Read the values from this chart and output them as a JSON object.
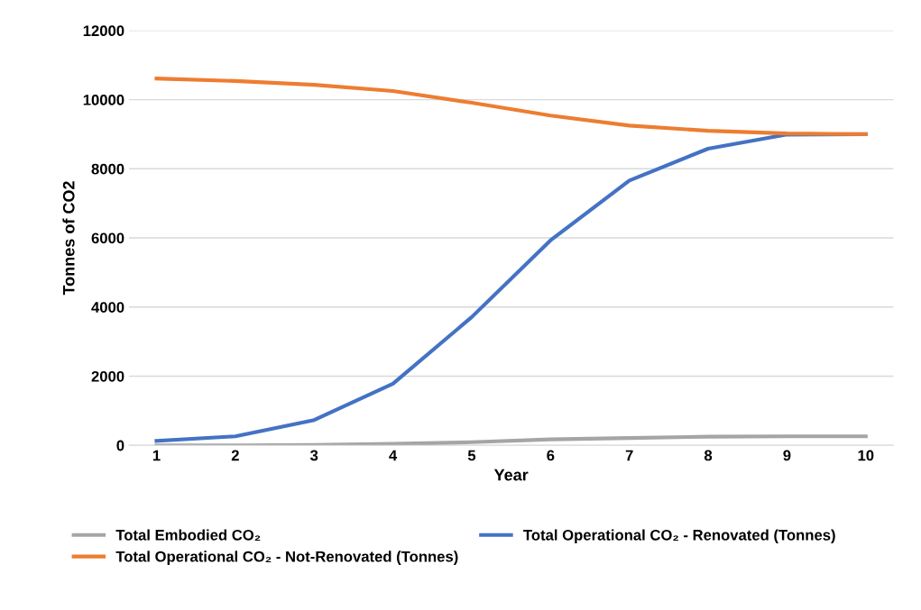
{
  "chart_data": {
    "type": "line",
    "xlabel": "Year",
    "ylabel": "Tonnes of CO2",
    "categories": [
      "1",
      "2",
      "3",
      "4",
      "5",
      "6",
      "7",
      "8",
      "9",
      "10"
    ],
    "series": [
      {
        "name": "Total Embodied CO₂",
        "color": "#a5a5a5",
        "values": [
          0,
          0,
          10,
          40,
          90,
          170,
          210,
          250,
          260,
          260
        ]
      },
      {
        "name": "Total Operational CO₂ - Renovated (Tonnes)",
        "color": "#4472c4",
        "values": [
          130,
          260,
          730,
          1780,
          3710,
          5930,
          7660,
          8580,
          8990,
          9000
        ]
      },
      {
        "name": "Total Operational CO₂ - Not-Renovated (Tonnes)",
        "color": "#ed7d31",
        "values": [
          10610,
          10540,
          10430,
          10250,
          9910,
          9540,
          9250,
          9100,
          9020,
          9000
        ]
      }
    ],
    "ylim": [
      0,
      12000
    ],
    "yticks": [
      0,
      2000,
      4000,
      6000,
      8000,
      10000,
      12000
    ],
    "grid": "y",
    "legend": "bottom",
    "marker": "none",
    "line_style": "solid"
  }
}
